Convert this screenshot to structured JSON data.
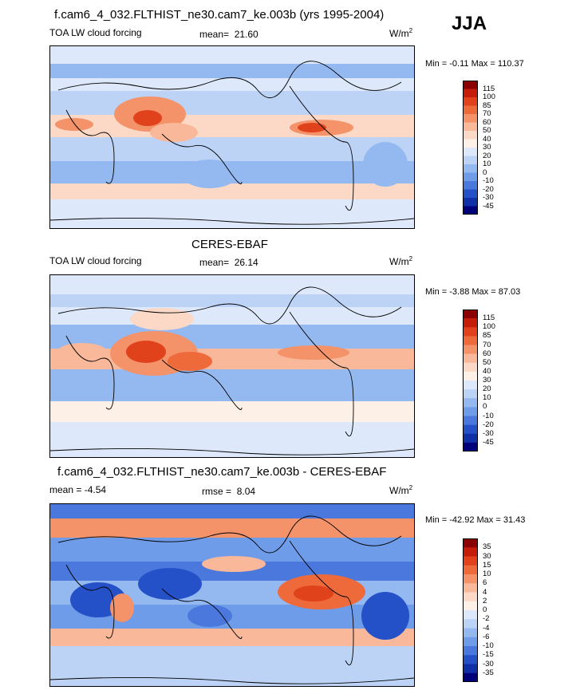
{
  "season": "JJA",
  "panels": [
    {
      "title": "f.cam6_4_032.FLTHIST_ne30.cam7_ke.003b (yrs 1995-2004)",
      "left_label": "TOA LW cloud forcing",
      "stat_label": "mean=",
      "stat_value": "21.60",
      "units": "W/m",
      "units_exp": "2",
      "minmax": "Min = -0.11 Max = 110.37",
      "colorbar": {
        "levels": [
          "115",
          "100",
          "85",
          "70",
          "60",
          "50",
          "40",
          "30",
          "20",
          "10",
          "0",
          "-10",
          "-20",
          "-30",
          "-45"
        ],
        "colors": [
          "#8b0000",
          "#c41e0a",
          "#e0421c",
          "#ee6a3a",
          "#f4926a",
          "#f9b89a",
          "#fcd9c6",
          "#fdf0e6",
          "#dde9fa",
          "#bcd3f6",
          "#94b8f0",
          "#6f9ce8",
          "#4a78dc",
          "#2450c8",
          "#1030a8",
          "#00007a"
        ]
      }
    },
    {
      "title": "CERES-EBAF",
      "left_label": "TOA LW cloud forcing",
      "stat_label": "mean=",
      "stat_value": "26.14",
      "units": "W/m",
      "units_exp": "2",
      "minmax": "Min = -3.88 Max = 87.03",
      "colorbar": {
        "levels": [
          "115",
          "100",
          "85",
          "70",
          "60",
          "50",
          "40",
          "30",
          "20",
          "10",
          "0",
          "-10",
          "-20",
          "-30",
          "-45"
        ],
        "colors": [
          "#8b0000",
          "#c41e0a",
          "#e0421c",
          "#ee6a3a",
          "#f4926a",
          "#f9b89a",
          "#fcd9c6",
          "#fdf0e6",
          "#dde9fa",
          "#bcd3f6",
          "#94b8f0",
          "#6f9ce8",
          "#4a78dc",
          "#2450c8",
          "#1030a8",
          "#00007a"
        ]
      }
    },
    {
      "title": "f.cam6_4_032.FLTHIST_ne30.cam7_ke.003b - CERES-EBAF",
      "left_label": "mean = -4.54",
      "stat_label": "rmse =",
      "stat_value": "8.04",
      "units": "W/m",
      "units_exp": "2",
      "minmax": "Min = -42.92 Max = 31.43",
      "colorbar": {
        "levels": [
          "35",
          "30",
          "15",
          "10",
          "6",
          "4",
          "2",
          "0",
          "-2",
          "-4",
          "-6",
          "-10",
          "-15",
          "-30",
          "-35"
        ],
        "colors": [
          "#8b0000",
          "#c41e0a",
          "#e0421c",
          "#ee6a3a",
          "#f4926a",
          "#f9b89a",
          "#fcd9c6",
          "#fdf0e6",
          "#dde9fa",
          "#bcd3f6",
          "#94b8f0",
          "#6f9ce8",
          "#4a78dc",
          "#2450c8",
          "#1030a8",
          "#00007a"
        ]
      }
    }
  ]
}
